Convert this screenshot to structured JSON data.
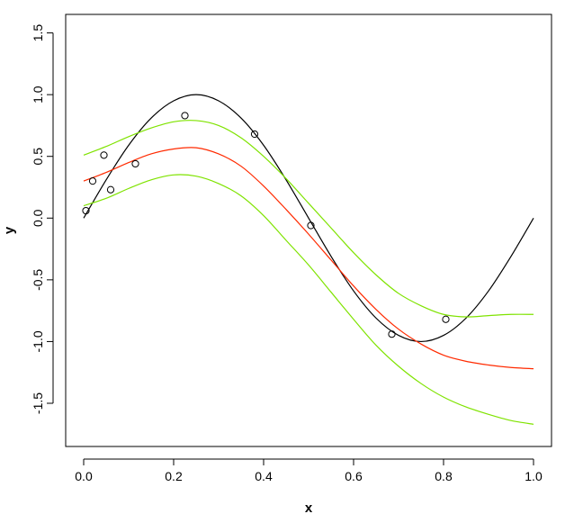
{
  "chart_data": {
    "type": "scatter",
    "title": "",
    "xlabel": "x",
    "ylabel": "y",
    "xlim": [
      -0.04,
      1.04
    ],
    "ylim": [
      -1.85,
      1.65
    ],
    "x_ticks": [
      0.0,
      0.2,
      0.4,
      0.6,
      0.8,
      1.0
    ],
    "x_tick_labels": [
      "0.0",
      "0.2",
      "0.4",
      "0.6",
      "0.8",
      "1.0"
    ],
    "y_ticks": [
      -1.5,
      -1.0,
      -0.5,
      0.0,
      0.5,
      1.0,
      1.5
    ],
    "y_tick_labels": [
      "-1.5",
      "-1.0",
      "-0.5",
      "0.0",
      "0.5",
      "1.0",
      "1.5"
    ],
    "grid": false,
    "legend": "none",
    "points": {
      "marker": "open-circle",
      "color": "#000000",
      "x": [
        0.005,
        0.02,
        0.045,
        0.06,
        0.115,
        0.225,
        0.38,
        0.505,
        0.685,
        0.805
      ],
      "y": [
        0.06,
        0.3,
        0.51,
        0.23,
        0.44,
        0.83,
        0.68,
        -0.06,
        -0.94,
        -0.82
      ]
    },
    "series": [
      {
        "color": "#000000",
        "x": [
          0.0,
          0.05,
          0.1,
          0.15,
          0.2,
          0.25,
          0.3,
          0.35,
          0.4,
          0.45,
          0.5,
          0.55,
          0.6,
          0.65,
          0.7,
          0.75,
          0.8,
          0.85,
          0.9,
          0.95,
          1.0
        ],
        "y": [
          0.0,
          0.31,
          0.59,
          0.81,
          0.95,
          1.0,
          0.95,
          0.81,
          0.59,
          0.31,
          0.0,
          -0.31,
          -0.59,
          -0.81,
          -0.95,
          -1.0,
          -0.95,
          -0.81,
          -0.59,
          -0.31,
          0.0
        ]
      },
      {
        "color": "#ff2a00",
        "x": [
          0.0,
          0.05,
          0.1,
          0.15,
          0.2,
          0.25,
          0.3,
          0.35,
          0.4,
          0.45,
          0.5,
          0.55,
          0.6,
          0.65,
          0.7,
          0.75,
          0.8,
          0.85,
          0.9,
          0.95,
          1.0
        ],
        "y": [
          0.3,
          0.37,
          0.45,
          0.52,
          0.56,
          0.57,
          0.52,
          0.42,
          0.26,
          0.07,
          -0.13,
          -0.34,
          -0.55,
          -0.74,
          -0.9,
          -1.02,
          -1.11,
          -1.16,
          -1.19,
          -1.21,
          -1.22
        ]
      },
      {
        "color": "#7fe300",
        "x": [
          0.0,
          0.05,
          0.1,
          0.15,
          0.2,
          0.25,
          0.3,
          0.35,
          0.4,
          0.45,
          0.5,
          0.55,
          0.6,
          0.65,
          0.7,
          0.75,
          0.8,
          0.85,
          0.9,
          0.95,
          1.0
        ],
        "y": [
          0.51,
          0.58,
          0.66,
          0.73,
          0.78,
          0.79,
          0.75,
          0.65,
          0.5,
          0.32,
          0.12,
          -0.08,
          -0.28,
          -0.46,
          -0.61,
          -0.71,
          -0.78,
          -0.8,
          -0.79,
          -0.78,
          -0.78
        ]
      },
      {
        "color": "#7fe300",
        "x": [
          0.0,
          0.05,
          0.1,
          0.15,
          0.2,
          0.25,
          0.3,
          0.35,
          0.4,
          0.45,
          0.5,
          0.55,
          0.6,
          0.65,
          0.7,
          0.75,
          0.8,
          0.85,
          0.9,
          0.95,
          1.0
        ],
        "y": [
          0.1,
          0.16,
          0.24,
          0.31,
          0.35,
          0.34,
          0.28,
          0.18,
          0.02,
          -0.18,
          -0.38,
          -0.6,
          -0.82,
          -1.03,
          -1.2,
          -1.34,
          -1.45,
          -1.53,
          -1.59,
          -1.64,
          -1.67
        ]
      }
    ]
  }
}
